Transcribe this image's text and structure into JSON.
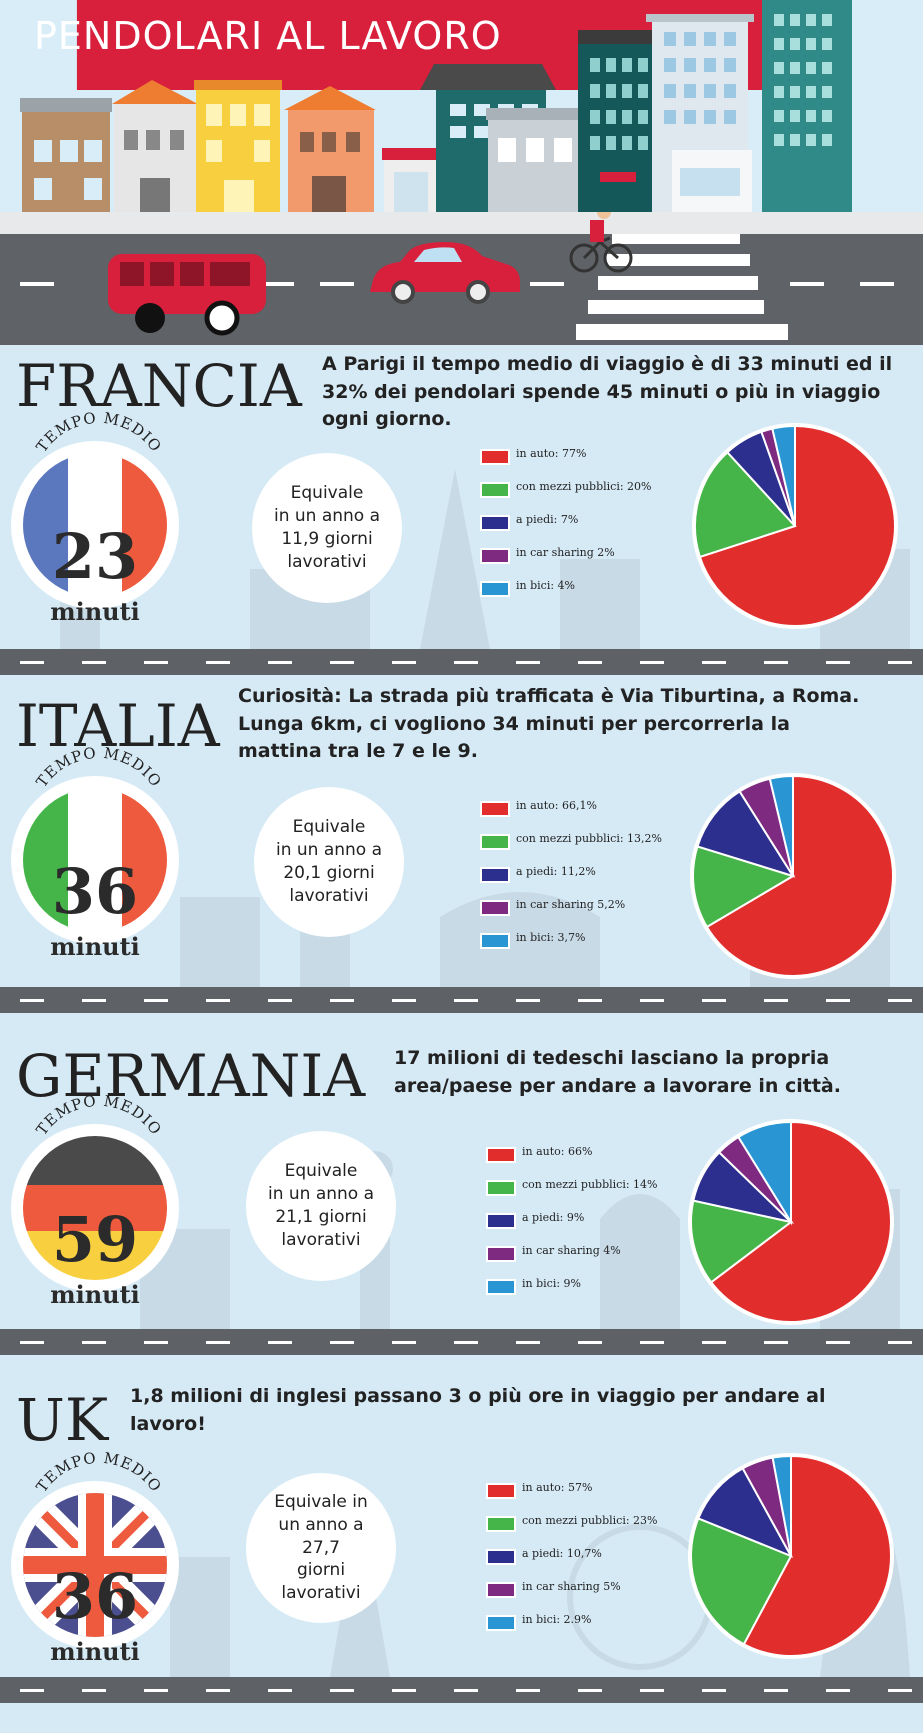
{
  "header": {
    "title": "PENDOLARI AL LAVORO"
  },
  "labels": {
    "tempo_medio": "TEMPO MEDIO",
    "minuti": "minuti"
  },
  "colors": {
    "auto": "#e22d2d",
    "mezzi": "#46b549",
    "piedi": "#2d2f8e",
    "sharing": "#7d2a80",
    "bici": "#2996d3",
    "banner": "#d81f3c",
    "road": "#5e6266"
  },
  "sections": [
    {
      "country": "FRANCIA",
      "headline": [
        "A Parigi il tempo medio di viaggio è di 33 minuti ed il",
        "32% dei pendolari spende 45 minuti o più in viaggio",
        "ogni giorno."
      ],
      "tempo_value": "23",
      "equiv": [
        "Equivale",
        "in un anno a",
        "11,9 giorni",
        "lavorativi"
      ],
      "legend": [
        "in auto: 77%",
        "con mezzi pubblici: 20%",
        "a piedi: 7%",
        "in car sharing 2%",
        "in bici: 4%"
      ]
    },
    {
      "country": "ITALIA",
      "headline": [
        "Curiosità: La strada più trafficata è Via Tiburtina, a Roma.",
        "Lunga 6km, ci vogliono 34 minuti per percorrerla la",
        "mattina tra le 7 e le 9."
      ],
      "tempo_value": "36",
      "equiv": [
        "Equivale",
        "in un anno a",
        "20,1 giorni",
        "lavorativi"
      ],
      "legend": [
        "in auto: 66,1%",
        "con mezzi pubblici: 13,2%",
        "a piedi: 11,2%",
        "in car sharing 5,2%",
        "in bici: 3,7%"
      ]
    },
    {
      "country": "GERMANIA",
      "headline": [
        "17 milioni di tedeschi lasciano la propria",
        "area/paese per andare a lavorare in città."
      ],
      "tempo_value": "59",
      "equiv": [
        "Equivale",
        "in un anno a",
        "21,1 giorni",
        "lavorativi"
      ],
      "legend": [
        "in auto: 66%",
        "con mezzi pubblici: 14%",
        "a piedi: 9%",
        "in car sharing 4%",
        "in bici: 9%"
      ]
    },
    {
      "country": "UK",
      "headline": [
        "1,8 milioni di inglesi passano 3 o più ore in viaggio per andare al",
        "lavoro!"
      ],
      "tempo_value": "36",
      "equiv": [
        "Equivale in",
        "un anno a 27,7",
        "giorni",
        "lavorativi"
      ],
      "legend": [
        "in auto: 57%",
        "con mezzi pubblici: 23%",
        "a piedi: 10,7%",
        "in car sharing 5%",
        "in bici: 2.9%"
      ]
    }
  ],
  "chart_data": [
    {
      "type": "pie",
      "title": "FRANCIA",
      "categories": [
        "in auto",
        "con mezzi pubblici",
        "a piedi",
        "in car sharing",
        "in bici"
      ],
      "values": [
        77,
        20,
        7,
        2,
        4
      ]
    },
    {
      "type": "pie",
      "title": "ITALIA",
      "categories": [
        "in auto",
        "con mezzi pubblici",
        "a piedi",
        "in car sharing",
        "in bici"
      ],
      "values": [
        66.1,
        13.2,
        11.2,
        5.2,
        3.7
      ]
    },
    {
      "type": "pie",
      "title": "GERMANIA",
      "categories": [
        "in auto",
        "con mezzi pubblici",
        "a piedi",
        "in car sharing",
        "in bici"
      ],
      "values": [
        66,
        14,
        9,
        4,
        9
      ]
    },
    {
      "type": "pie",
      "title": "UK",
      "categories": [
        "in auto",
        "con mezzi pubblici",
        "a piedi",
        "in car sharing",
        "in bici"
      ],
      "values": [
        57,
        23,
        10.7,
        5,
        2.9
      ]
    }
  ]
}
